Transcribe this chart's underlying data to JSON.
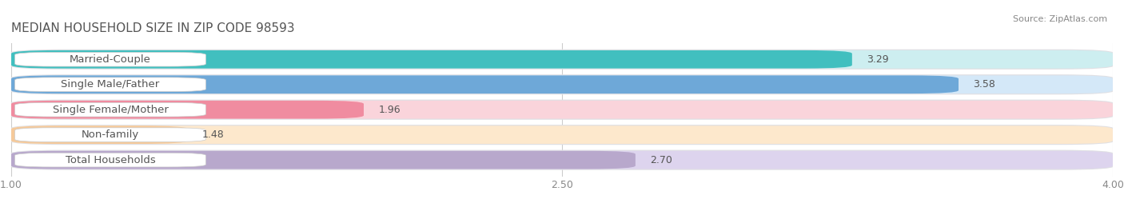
{
  "title": "MEDIAN HOUSEHOLD SIZE IN ZIP CODE 98593",
  "source": "Source: ZipAtlas.com",
  "categories": [
    "Married-Couple",
    "Single Male/Father",
    "Single Female/Mother",
    "Non-family",
    "Total Households"
  ],
  "values": [
    3.29,
    3.58,
    1.96,
    1.48,
    2.7
  ],
  "bar_colors": [
    "#41bfbf",
    "#6ea8d8",
    "#f08ca0",
    "#f5c99a",
    "#b8a8cc"
  ],
  "bar_bg_colors": [
    "#cdeef0",
    "#d4e8f8",
    "#fad4db",
    "#fde8cc",
    "#ddd4ee"
  ],
  "label_colors": [
    "#5a8a8a",
    "#5a78a8",
    "#c07080",
    "#c09060",
    "#8870a8"
  ],
  "xmin": 1.0,
  "xmax": 4.0,
  "xticks": [
    1.0,
    2.5,
    4.0
  ],
  "label_fontsize": 9.5,
  "value_fontsize": 9,
  "title_fontsize": 11,
  "background_color": "#ffffff"
}
